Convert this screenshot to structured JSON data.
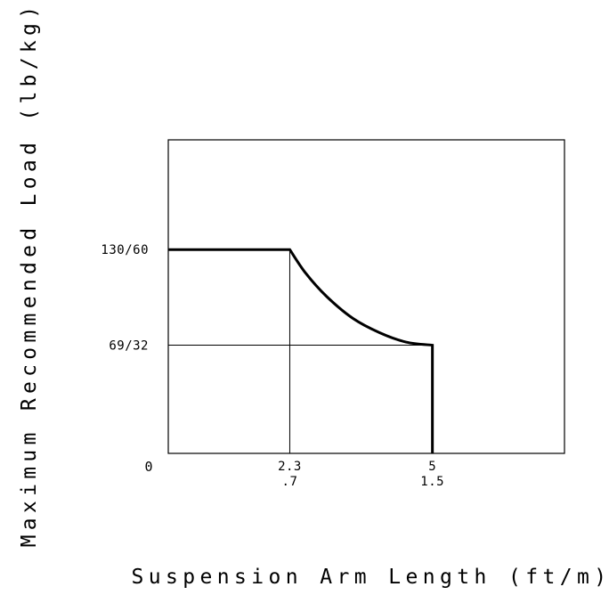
{
  "chart_data": {
    "type": "line",
    "title": "",
    "xlabel": "Suspension Arm Length (ft/m)",
    "ylabel": "Maximum Recommended Load (lb/kg)",
    "x_unit": "ft",
    "y_unit": "lb",
    "xlim": [
      0,
      7.5
    ],
    "ylim": [
      0,
      200
    ],
    "origin_label": "0",
    "x_ticks": [
      {
        "value": 2.3,
        "label_ft": "2.3",
        "label_m": ".7"
      },
      {
        "value": 5,
        "label_ft": "5",
        "label_m": "1.5"
      }
    ],
    "y_ticks": [
      {
        "value": 130,
        "label": "130/60"
      },
      {
        "value": 69,
        "label": "69/32"
      }
    ],
    "guide_lines": {
      "vertical_at_x": [
        2.3
      ],
      "horizontal_at_y": [
        69
      ]
    },
    "series": [
      {
        "points": [
          {
            "x": 0,
            "y": 130
          },
          {
            "x": 2.3,
            "y": 130
          },
          {
            "x": 2.6,
            "y": 115
          },
          {
            "x": 3.0,
            "y": 100
          },
          {
            "x": 3.5,
            "y": 86
          },
          {
            "x": 4.0,
            "y": 77
          },
          {
            "x": 4.5,
            "y": 71
          },
          {
            "x": 5,
            "y": 69
          },
          {
            "x": 5,
            "y": 0
          }
        ]
      }
    ],
    "grid": false,
    "legend": "none"
  }
}
